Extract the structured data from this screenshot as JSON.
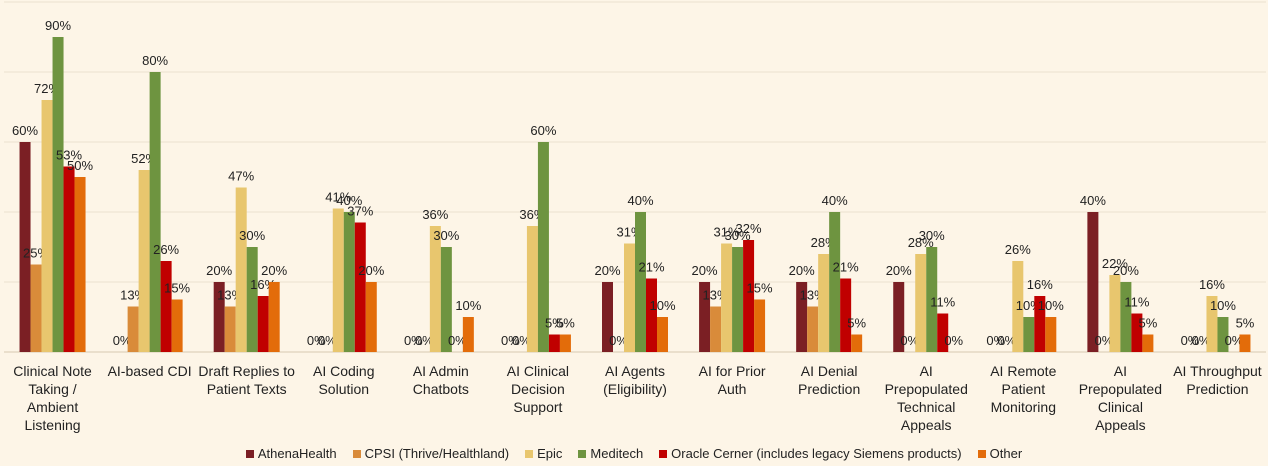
{
  "chart_data": {
    "type": "bar",
    "categories": [
      "Clinical Note Taking / Ambient Listening",
      "AI-based CDI",
      "Draft Replies to Patient Texts",
      "AI Coding Solution",
      "AI Admin Chatbots",
      "AI Clinical Decision Support",
      "AI Agents (Eligibility)",
      "AI for Prior Auth",
      "AI Denial Prediction",
      "AI Prepopulated Technical Appeals",
      "AI Remote Patient Monitoring",
      "AI Prepopulated Clinical Appeals",
      "AI Throughput Prediction"
    ],
    "series": [
      {
        "name": "AthenaHealth",
        "color": "#7b1f24",
        "values": [
          60,
          0,
          20,
          0,
          0,
          0,
          20,
          20,
          20,
          20,
          0,
          40,
          0
        ],
        "value_labels": [
          "60%",
          "0%",
          "20%",
          "0%",
          "0%",
          "0%",
          "20%",
          "20%",
          "20%",
          "20%",
          "0%",
          "40%",
          "0%"
        ]
      },
      {
        "name": "CPSI (Thrive/Healthland)",
        "color": "#d98b3a",
        "values": [
          25,
          13,
          13,
          0,
          0,
          0,
          0,
          13,
          13,
          0,
          0,
          0,
          0
        ],
        "value_labels": [
          "25%",
          "13%",
          "13%",
          "0%",
          "0%",
          "0%",
          "0%",
          "13%",
          "13%",
          "0%",
          "0%",
          "0%",
          "0%"
        ]
      },
      {
        "name": "Epic",
        "color": "#e8c66e",
        "values": [
          72,
          52,
          47,
          41,
          36,
          36,
          31,
          31,
          28,
          28,
          26,
          22,
          16
        ],
        "value_labels": [
          "72%",
          "52%",
          "47%",
          "41%",
          "36%",
          "36%",
          "31%",
          "31%",
          "28%",
          "28%",
          "26%",
          "22%",
          "16%"
        ]
      },
      {
        "name": "Meditech",
        "color": "#6e9440",
        "values": [
          90,
          80,
          30,
          40,
          30,
          60,
          40,
          30,
          40,
          30,
          10,
          20,
          10
        ],
        "value_labels": [
          "90%",
          "80%",
          "30%",
          "40%",
          "30%",
          "60%",
          "40%",
          "30%",
          "40%",
          "30%",
          "10%",
          "20%",
          "10%"
        ]
      },
      {
        "name": "Oracle Cerner (includes legacy Siemens products)",
        "color": "#c00000",
        "values": [
          53,
          26,
          16,
          37,
          0,
          5,
          21,
          32,
          21,
          11,
          16,
          11,
          0
        ],
        "value_labels": [
          "53%",
          "26%",
          "16%",
          "37%",
          "0%",
          "5%",
          "21%",
          "32%",
          "21%",
          "11%",
          "16%",
          "11%",
          "0%"
        ]
      },
      {
        "name": "Other",
        "color": "#e36c0a",
        "values": [
          50,
          15,
          20,
          20,
          10,
          5,
          10,
          15,
          5,
          0,
          10,
          5,
          5
        ],
        "value_labels": [
          "50%",
          "15%",
          "20%",
          "20%",
          "10%",
          "5%",
          "10%",
          "15%",
          "5%",
          "0%",
          "10%",
          "5%",
          "5%"
        ]
      }
    ],
    "ylim": [
      0,
      100
    ],
    "yticks": [
      0,
      20,
      40,
      60,
      80,
      100
    ],
    "grid": true,
    "legend": "bottom"
  }
}
